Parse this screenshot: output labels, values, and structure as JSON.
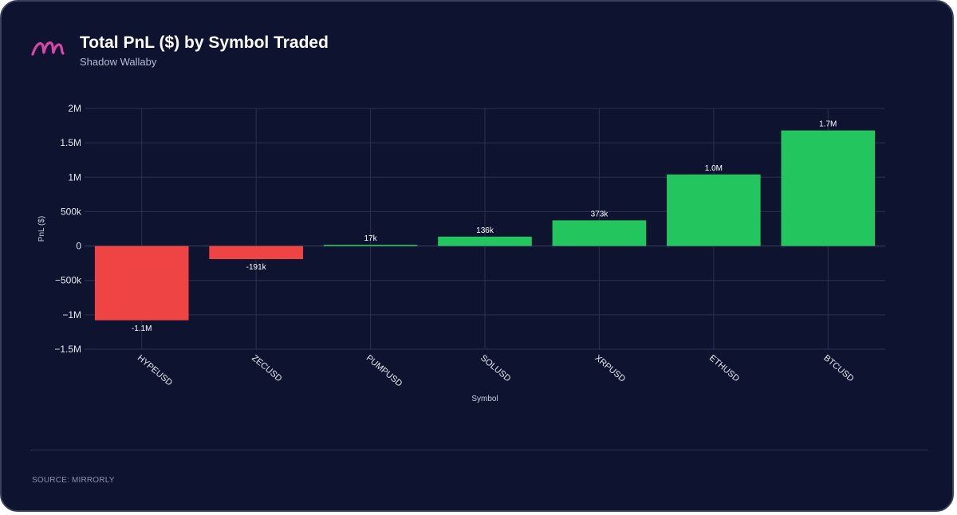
{
  "header": {
    "title": "Total PnL ($) by Symbol Traded",
    "subtitle": "Shadow Wallaby",
    "logo_icon": "mirrorly-m-logo-icon"
  },
  "footer": {
    "source": "SOURCE: MIRRORLY"
  },
  "colors": {
    "positive": "#22c55e",
    "negative": "#ef4444",
    "background": "#0e1430",
    "grid": "#2a3150",
    "logo": "#d946a8"
  },
  "chart_data": {
    "type": "bar",
    "categories": [
      "HYPEUSD",
      "ZECUSD",
      "PUMPUSD",
      "SOLUSD",
      "XRPUSD",
      "ETHUSD",
      "BTCUSD"
    ],
    "values": [
      -1080000,
      -191000,
      17000,
      136000,
      373000,
      1040000,
      1680000
    ],
    "data_labels": [
      "-1.1M",
      "-191k",
      "17k",
      "136k",
      "373k",
      "1.0M",
      "1.7M"
    ],
    "title": "Total PnL ($) by Symbol Traded",
    "xlabel": "Symbol",
    "ylabel": "PnL ($)",
    "ylim": [
      -1500000,
      2000000
    ],
    "yticks": [
      2000000,
      1500000,
      1000000,
      500000,
      0,
      -500000,
      -1000000,
      -1500000
    ],
    "ytick_labels": [
      "2M",
      "1.5M",
      "1M",
      "500k",
      "0",
      "−500k",
      "−1M",
      "−1.5M"
    ],
    "grid": true,
    "legend": "none"
  }
}
